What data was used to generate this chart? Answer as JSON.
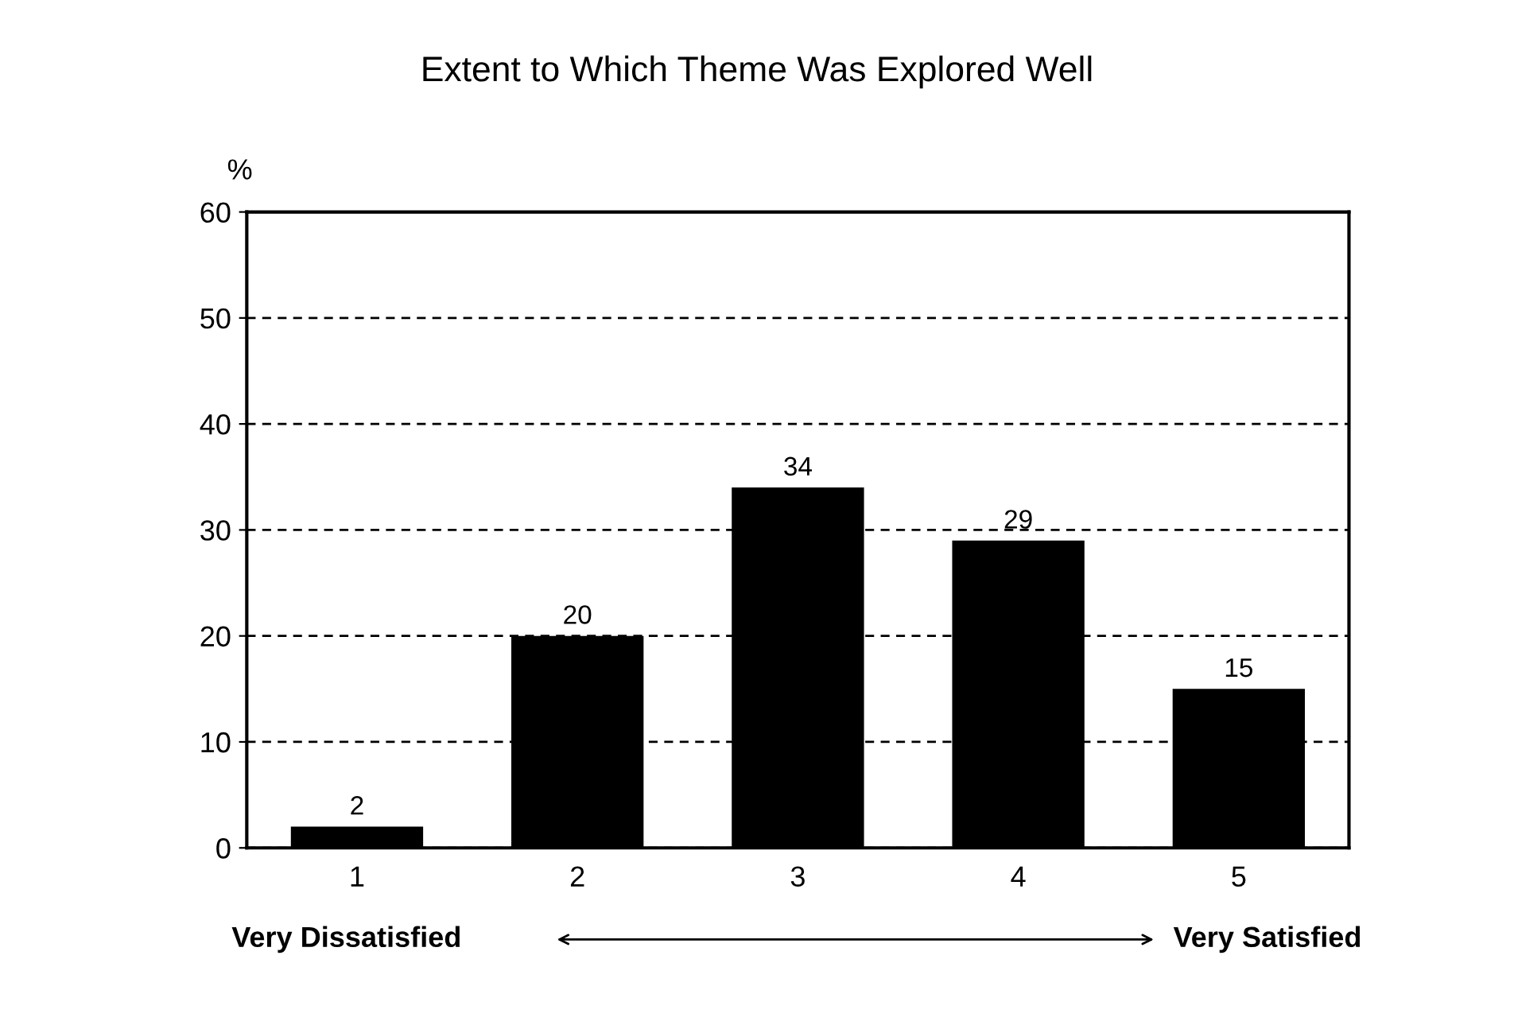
{
  "chart_data": {
    "type": "bar",
    "title": "Extent to Which Theme Was Explored Well",
    "ylabel": "%",
    "categories": [
      "1",
      "2",
      "3",
      "4",
      "5"
    ],
    "values": [
      2,
      20,
      34,
      29,
      15
    ],
    "color": "#000000",
    "ylim": [
      0,
      60
    ],
    "yticks": [
      0,
      10,
      20,
      30,
      40,
      50,
      60
    ],
    "grid": "y",
    "line_style": "dashed",
    "data_labels": true,
    "annotations": [
      "Very Dissatisfied",
      "Very Satisfied"
    ]
  }
}
